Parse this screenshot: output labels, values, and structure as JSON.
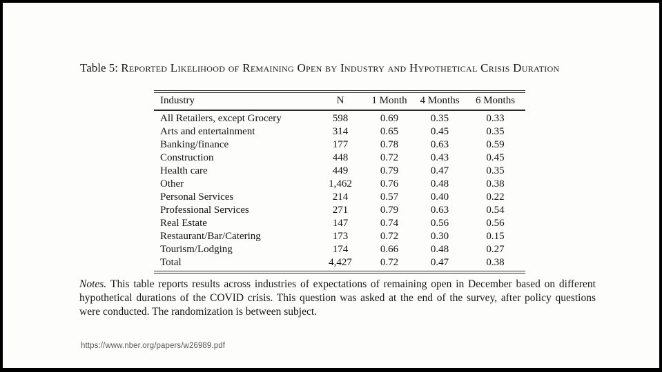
{
  "paper": {
    "title_prefix": "Table 5: ",
    "title_smallcaps": "Reported Likelihood of Remaining Open by Industry and Hypothetical Crisis Duration",
    "url": "https://www.nber.org/papers/w26989.pdf"
  },
  "chart_data": {
    "type": "table",
    "columns": [
      "Industry",
      "N",
      "1 Month",
      "4 Months",
      "6 Months"
    ],
    "rows": [
      [
        "All Retailers, except Grocery",
        "598",
        "0.69",
        "0.35",
        "0.33"
      ],
      [
        "Arts and entertainment",
        "314",
        "0.65",
        "0.45",
        "0.35"
      ],
      [
        "Banking/finance",
        "177",
        "0.78",
        "0.63",
        "0.59"
      ],
      [
        "Construction",
        "448",
        "0.72",
        "0.43",
        "0.45"
      ],
      [
        "Health care",
        "449",
        "0.79",
        "0.47",
        "0.35"
      ],
      [
        "Other",
        "1,462",
        "0.76",
        "0.48",
        "0.38"
      ],
      [
        "Personal Services",
        "214",
        "0.57",
        "0.40",
        "0.22"
      ],
      [
        "Professional Services",
        "271",
        "0.79",
        "0.63",
        "0.54"
      ],
      [
        "Real Estate",
        "147",
        "0.74",
        "0.56",
        "0.56"
      ],
      [
        "Restaurant/Bar/Catering",
        "173",
        "0.72",
        "0.30",
        "0.15"
      ],
      [
        "Tourism/Lodging",
        "174",
        "0.66",
        "0.48",
        "0.27"
      ],
      [
        "Total",
        "4,427",
        "0.72",
        "0.47",
        "0.38"
      ]
    ]
  },
  "notes": {
    "label": "Notes. ",
    "text": "This table reports results across industries of expectations of remaining open in December based on different hypothetical durations of the COVID crisis. This question was asked at the end of the survey, after policy questions were conducted. The randomization is between subject."
  }
}
